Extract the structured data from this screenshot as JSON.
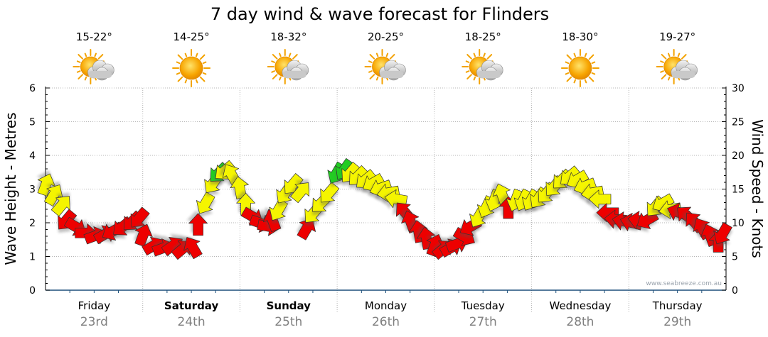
{
  "chart_data": {
    "type": "line",
    "title": "7 day wind & wave forecast for Flinders",
    "ylabel_left": "Wave Height - Metres",
    "ylabel_right": "Wind Speed - Knots",
    "ylim_left": [
      0,
      6
    ],
    "ylim_right": [
      0,
      30
    ],
    "yticks_left": [
      "0",
      "1",
      "2",
      "3",
      "4",
      "5",
      "6"
    ],
    "yticks_right": [
      "0",
      "5",
      "10",
      "15",
      "20",
      "25",
      "30"
    ],
    "grid": true,
    "watermark": "www.seabreeze.com.au",
    "legend": "wind arrows coloured by suitability (green / yellow / red)",
    "days": [
      {
        "day": "Friday",
        "date": "23rd",
        "temp": "15-22°",
        "weather": "partly-cloudy",
        "bold": false
      },
      {
        "day": "Saturday",
        "date": "24th",
        "temp": "14-25°",
        "weather": "sunny",
        "bold": true
      },
      {
        "day": "Sunday",
        "date": "25th",
        "temp": "18-32°",
        "weather": "partly-cloudy",
        "bold": true
      },
      {
        "day": "Monday",
        "date": "26th",
        "temp": "20-25°",
        "weather": "partly-cloudy",
        "bold": false
      },
      {
        "day": "Tuesday",
        "date": "27th",
        "temp": "18-25°",
        "weather": "partly-cloudy",
        "bold": false
      },
      {
        "day": "Wednesday",
        "date": "28th",
        "temp": "18-30°",
        "weather": "sunny",
        "bold": false
      },
      {
        "day": "Thursday",
        "date": "29th",
        "temp": "19-27°",
        "weather": "partly-cloudy",
        "bold": false
      }
    ],
    "wind_colors": {
      "green": "#22cc22",
      "yellow": "#f5f500",
      "red": "#ee0000"
    },
    "wind_series": {
      "name": "Wind Speed (knots) and direction",
      "points": [
        {
          "day": 0.0,
          "knots": 15.5,
          "dir": 200,
          "color": "yellow"
        },
        {
          "day": 0.08,
          "knots": 14.0,
          "dir": 210,
          "color": "yellow"
        },
        {
          "day": 0.16,
          "knots": 12.5,
          "dir": 220,
          "color": "yellow"
        },
        {
          "day": 0.22,
          "knots": 10.5,
          "dir": 40,
          "color": "red"
        },
        {
          "day": 0.3,
          "knots": 9.5,
          "dir": 300,
          "color": "red"
        },
        {
          "day": 0.4,
          "knots": 8.5,
          "dir": 270,
          "color": "red"
        },
        {
          "day": 0.5,
          "knots": 8.0,
          "dir": 250,
          "color": "red"
        },
        {
          "day": 0.6,
          "knots": 8.2,
          "dir": 240,
          "color": "red"
        },
        {
          "day": 0.7,
          "knots": 8.8,
          "dir": 60,
          "color": "red"
        },
        {
          "day": 0.8,
          "knots": 9.5,
          "dir": 50,
          "color": "red"
        },
        {
          "day": 0.9,
          "knots": 10.3,
          "dir": 45,
          "color": "red"
        },
        {
          "day": 0.97,
          "knots": 10.8,
          "dir": 40,
          "color": "red"
        },
        {
          "day": 1.0,
          "knots": 8.0,
          "dir": 200,
          "color": "red"
        },
        {
          "day": 1.1,
          "knots": 6.5,
          "dir": 240,
          "color": "red"
        },
        {
          "day": 1.2,
          "knots": 6.2,
          "dir": 250,
          "color": "red"
        },
        {
          "day": 1.3,
          "knots": 6.5,
          "dir": 235,
          "color": "red"
        },
        {
          "day": 1.4,
          "knots": 6.0,
          "dir": 230,
          "color": "red"
        },
        {
          "day": 1.52,
          "knots": 6.2,
          "dir": 150,
          "color": "red"
        },
        {
          "day": 1.57,
          "knots": 9.5,
          "dir": 180,
          "color": "red"
        },
        {
          "day": 1.65,
          "knots": 13.0,
          "dir": 30,
          "color": "yellow"
        },
        {
          "day": 1.73,
          "knots": 16.0,
          "dir": 35,
          "color": "yellow"
        },
        {
          "day": 1.79,
          "knots": 17.5,
          "dir": 45,
          "color": "green"
        },
        {
          "day": 1.85,
          "knots": 17.8,
          "dir": 50,
          "color": "yellow"
        },
        {
          "day": 1.92,
          "knots": 17.0,
          "dir": 150,
          "color": "yellow"
        },
        {
          "day": 2.0,
          "knots": 15.0,
          "dir": 170,
          "color": "yellow"
        },
        {
          "day": 2.06,
          "knots": 12.5,
          "dir": 180,
          "color": "yellow"
        },
        {
          "day": 2.12,
          "knots": 11.0,
          "dir": 300,
          "color": "red"
        },
        {
          "day": 2.2,
          "knots": 10.0,
          "dir": 290,
          "color": "red"
        },
        {
          "day": 2.28,
          "knots": 9.5,
          "dir": 280,
          "color": "red"
        },
        {
          "day": 2.34,
          "knots": 10.2,
          "dir": 160,
          "color": "red"
        },
        {
          "day": 2.4,
          "knots": 12.0,
          "dir": 30,
          "color": "yellow"
        },
        {
          "day": 2.47,
          "knots": 14.5,
          "dir": 35,
          "color": "yellow"
        },
        {
          "day": 2.55,
          "knots": 15.8,
          "dir": 40,
          "color": "yellow"
        },
        {
          "day": 2.62,
          "knots": 14.5,
          "dir": 220,
          "color": "yellow"
        },
        {
          "day": 2.68,
          "knots": 9.0,
          "dir": 210,
          "color": "red"
        },
        {
          "day": 2.76,
          "knots": 11.5,
          "dir": 40,
          "color": "yellow"
        },
        {
          "day": 2.84,
          "knots": 13.0,
          "dir": 45,
          "color": "yellow"
        },
        {
          "day": 2.92,
          "knots": 14.5,
          "dir": 40,
          "color": "yellow"
        },
        {
          "day": 3.0,
          "knots": 17.5,
          "dir": 30,
          "color": "green"
        },
        {
          "day": 3.08,
          "knots": 18.0,
          "dir": 35,
          "color": "green"
        },
        {
          "day": 3.14,
          "knots": 17.5,
          "dir": 40,
          "color": "yellow"
        },
        {
          "day": 3.22,
          "knots": 17.0,
          "dir": 45,
          "color": "yellow"
        },
        {
          "day": 3.3,
          "knots": 16.5,
          "dir": 50,
          "color": "yellow"
        },
        {
          "day": 3.38,
          "knots": 16.0,
          "dir": 60,
          "color": "yellow"
        },
        {
          "day": 3.46,
          "knots": 15.2,
          "dir": 70,
          "color": "yellow"
        },
        {
          "day": 3.54,
          "knots": 14.5,
          "dir": 80,
          "color": "yellow"
        },
        {
          "day": 3.62,
          "knots": 13.5,
          "dir": 100,
          "color": "yellow"
        },
        {
          "day": 3.7,
          "knots": 11.5,
          "dir": 140,
          "color": "red"
        },
        {
          "day": 3.76,
          "knots": 10.0,
          "dir": 160,
          "color": "red"
        },
        {
          "day": 3.84,
          "knots": 8.5,
          "dir": 170,
          "color": "red"
        },
        {
          "day": 3.92,
          "knots": 7.5,
          "dir": 170,
          "color": "red"
        },
        {
          "day": 4.0,
          "knots": 6.5,
          "dir": 200,
          "color": "red"
        },
        {
          "day": 4.08,
          "knots": 6.0,
          "dir": 230,
          "color": "red"
        },
        {
          "day": 4.16,
          "knots": 6.2,
          "dir": 240,
          "color": "red"
        },
        {
          "day": 4.22,
          "knots": 6.8,
          "dir": 250,
          "color": "red"
        },
        {
          "day": 4.3,
          "knots": 8.0,
          "dir": 300,
          "color": "red"
        },
        {
          "day": 4.38,
          "knots": 9.5,
          "dir": 60,
          "color": "red"
        },
        {
          "day": 4.46,
          "knots": 11.0,
          "dir": 30,
          "color": "yellow"
        },
        {
          "day": 4.54,
          "knots": 12.5,
          "dir": 25,
          "color": "yellow"
        },
        {
          "day": 4.62,
          "knots": 13.5,
          "dir": 20,
          "color": "yellow"
        },
        {
          "day": 4.7,
          "knots": 14.0,
          "dir": 160,
          "color": "yellow"
        },
        {
          "day": 4.76,
          "knots": 12.0,
          "dir": 180,
          "color": "red"
        },
        {
          "day": 4.84,
          "knots": 13.5,
          "dir": 20,
          "color": "yellow"
        },
        {
          "day": 4.92,
          "knots": 13.5,
          "dir": 25,
          "color": "yellow"
        },
        {
          "day": 5.0,
          "knots": 13.5,
          "dir": 30,
          "color": "yellow"
        },
        {
          "day": 5.08,
          "knots": 13.8,
          "dir": 35,
          "color": "yellow"
        },
        {
          "day": 5.16,
          "knots": 14.5,
          "dir": 40,
          "color": "yellow"
        },
        {
          "day": 5.24,
          "knots": 15.5,
          "dir": 40,
          "color": "yellow"
        },
        {
          "day": 5.32,
          "knots": 16.5,
          "dir": 45,
          "color": "yellow"
        },
        {
          "day": 5.4,
          "knots": 17.0,
          "dir": 50,
          "color": "yellow"
        },
        {
          "day": 5.48,
          "knots": 16.5,
          "dir": 60,
          "color": "yellow"
        },
        {
          "day": 5.56,
          "knots": 15.5,
          "dir": 70,
          "color": "yellow"
        },
        {
          "day": 5.64,
          "knots": 14.5,
          "dir": 80,
          "color": "yellow"
        },
        {
          "day": 5.72,
          "knots": 13.5,
          "dir": 90,
          "color": "yellow"
        },
        {
          "day": 5.8,
          "knots": 11.5,
          "dir": 90,
          "color": "red"
        },
        {
          "day": 5.88,
          "knots": 10.5,
          "dir": 95,
          "color": "red"
        },
        {
          "day": 5.96,
          "knots": 10.2,
          "dir": 100,
          "color": "red"
        },
        {
          "day": 6.04,
          "knots": 10.0,
          "dir": 105,
          "color": "red"
        },
        {
          "day": 6.12,
          "knots": 10.3,
          "dir": 100,
          "color": "red"
        },
        {
          "day": 6.2,
          "knots": 10.5,
          "dir": 60,
          "color": "red"
        },
        {
          "day": 6.28,
          "knots": 12.5,
          "dir": 40,
          "color": "yellow"
        },
        {
          "day": 6.36,
          "knots": 13.0,
          "dir": 60,
          "color": "yellow"
        },
        {
          "day": 6.44,
          "knots": 12.0,
          "dir": 80,
          "color": "yellow"
        },
        {
          "day": 6.52,
          "knots": 11.5,
          "dir": 110,
          "color": "red"
        },
        {
          "day": 6.6,
          "knots": 11.0,
          "dir": 130,
          "color": "red"
        },
        {
          "day": 6.68,
          "knots": 10.0,
          "dir": 140,
          "color": "red"
        },
        {
          "day": 6.76,
          "knots": 9.0,
          "dir": 150,
          "color": "red"
        },
        {
          "day": 6.84,
          "knots": 8.0,
          "dir": 160,
          "color": "red"
        },
        {
          "day": 6.92,
          "knots": 7.0,
          "dir": 180,
          "color": "red"
        },
        {
          "day": 6.97,
          "knots": 8.5,
          "dir": 30,
          "color": "red"
        }
      ]
    }
  }
}
